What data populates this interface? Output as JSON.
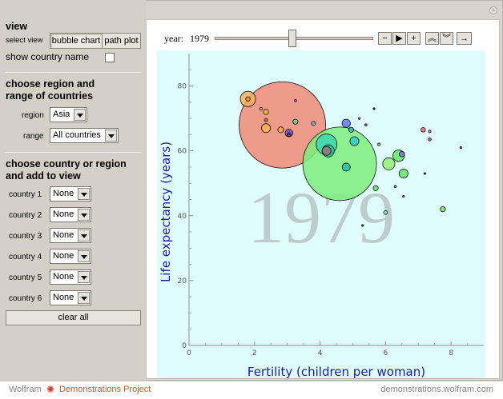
{
  "panel": {
    "view_title": "view",
    "select_view_label": "select view",
    "view_options": [
      "bubble chart",
      "path plot"
    ],
    "selected_view": "bubble chart",
    "show_country_name_label": "show country name",
    "show_country_name_checked": false,
    "region_title": "choose region and range of countries",
    "region_label": "region",
    "region_value": "Asia",
    "range_label": "range",
    "range_value": "All countries",
    "country_title": "choose country or region and add to view",
    "countries": [
      {
        "label": "country 1",
        "value": "None"
      },
      {
        "label": "country 2",
        "value": "None"
      },
      {
        "label": "country 3",
        "value": "None"
      },
      {
        "label": "country 4",
        "value": "None"
      },
      {
        "label": "country 5",
        "value": "None"
      },
      {
        "label": "country 6",
        "value": "None"
      }
    ],
    "clear_label": "clear all"
  },
  "animator": {
    "year_label": "year:",
    "year_value": "1979",
    "slider_fraction": 0.48,
    "controls": [
      {
        "name": "step-back-button",
        "glyph": "−"
      },
      {
        "name": "play-button",
        "glyph": "▶"
      },
      {
        "name": "step-forward-button",
        "glyph": "+"
      },
      {
        "name": "faster-button",
        "glyph": "︽"
      },
      {
        "name": "slower-button",
        "glyph": "︾"
      },
      {
        "name": "direction-button",
        "glyph": "→"
      }
    ]
  },
  "footer": {
    "brand_wolfram": "Wolfram",
    "brand_demos": "Demonstrations Project",
    "url": "demonstrations.wolfram.com"
  },
  "colors": {
    "plot_bg": "#e0fdfd",
    "axis_title": "#1a1aa6",
    "brand": "#d25a1c"
  },
  "chart_data": {
    "type": "scatter",
    "title": "",
    "background_year": "1979",
    "xlabel": "Fertility (children per woman)",
    "ylabel": "Life expectancy (years)",
    "xlim": [
      0,
      9
    ],
    "ylim": [
      0,
      90
    ],
    "xticks": [
      0,
      2,
      4,
      6,
      8
    ],
    "yticks": [
      0,
      20,
      40,
      60,
      80
    ],
    "grid": false,
    "points": [
      {
        "x": 2.85,
        "y": 68.0,
        "size": 2.7,
        "color": "#f08a77"
      },
      {
        "x": 4.6,
        "y": 56.0,
        "size": 2.3,
        "color": "#7cf07c"
      },
      {
        "x": 4.2,
        "y": 62.0,
        "size": 0.65,
        "color": "#3cd8b2"
      },
      {
        "x": 4.25,
        "y": 60.0,
        "size": 0.38,
        "color": "#1fc7aa"
      },
      {
        "x": 4.2,
        "y": 60.0,
        "size": 0.28,
        "color": "#9a7570"
      },
      {
        "x": 1.8,
        "y": 76.0,
        "size": 0.48,
        "color": "#f8b15a"
      },
      {
        "x": 1.8,
        "y": 76.0,
        "size": 0.14,
        "color": "#ef8a3a"
      },
      {
        "x": 2.2,
        "y": 73.0,
        "size": 0.08,
        "color": "#d8c040"
      },
      {
        "x": 2.35,
        "y": 72.0,
        "size": 0.16,
        "color": "#f3c12a"
      },
      {
        "x": 2.35,
        "y": 69.5,
        "size": 0.1,
        "color": "#a08030"
      },
      {
        "x": 2.35,
        "y": 67.0,
        "size": 0.28,
        "color": "#f8b15a"
      },
      {
        "x": 2.8,
        "y": 66.5,
        "size": 0.18,
        "color": "#f5a845"
      },
      {
        "x": 3.05,
        "y": 65.5,
        "size": 0.24,
        "color": "#7a4fd0"
      },
      {
        "x": 3.05,
        "y": 65.0,
        "size": 0.12,
        "color": "#353a7c"
      },
      {
        "x": 3.25,
        "y": 69.0,
        "size": 0.16,
        "color": "#68c87a"
      },
      {
        "x": 3.25,
        "y": 75.5,
        "size": 0.07,
        "color": "#d872d2"
      },
      {
        "x": 3.8,
        "y": 68.5,
        "size": 0.13,
        "color": "#78b0d8"
      },
      {
        "x": 4.8,
        "y": 68.5,
        "size": 0.26,
        "color": "#5b7af0"
      },
      {
        "x": 4.95,
        "y": 66.5,
        "size": 0.16,
        "color": "#38b8a6"
      },
      {
        "x": 5.05,
        "y": 63.0,
        "size": 0.28,
        "color": "#2fc8cf"
      },
      {
        "x": 4.8,
        "y": 55.0,
        "size": 0.25,
        "color": "#20c0b0"
      },
      {
        "x": 5.2,
        "y": 70.0,
        "size": 0.06,
        "color": "#c870c8"
      },
      {
        "x": 5.4,
        "y": 68.0,
        "size": 0.07,
        "color": "#d47ad0"
      },
      {
        "x": 5.65,
        "y": 73.0,
        "size": 0.03,
        "color": "#222222"
      },
      {
        "x": 5.8,
        "y": 62.0,
        "size": 0.08,
        "color": "#8fe075"
      },
      {
        "x": 5.7,
        "y": 48.5,
        "size": 0.16,
        "color": "#62e462"
      },
      {
        "x": 5.3,
        "y": 37.0,
        "size": 0.03,
        "color": "#333333"
      },
      {
        "x": 6.1,
        "y": 56.0,
        "size": 0.38,
        "color": "#8ff06e"
      },
      {
        "x": 6.4,
        "y": 58.5,
        "size": 0.36,
        "color": "#62f062"
      },
      {
        "x": 6.5,
        "y": 59.0,
        "size": 0.17,
        "color": "#7b6ae0"
      },
      {
        "x": 6.55,
        "y": 53.0,
        "size": 0.28,
        "color": "#64e864"
      },
      {
        "x": 6.3,
        "y": 49.0,
        "size": 0.07,
        "color": "#48b8e8"
      },
      {
        "x": 6.55,
        "y": 46.0,
        "size": 0.03,
        "color": "#333333"
      },
      {
        "x": 6.0,
        "y": 41.0,
        "size": 0.12,
        "color": "#78f0ae"
      },
      {
        "x": 7.15,
        "y": 66.5,
        "size": 0.14,
        "color": "#f06880"
      },
      {
        "x": 7.35,
        "y": 66.0,
        "size": 0.08,
        "color": "#e8609a"
      },
      {
        "x": 7.35,
        "y": 63.5,
        "size": 0.09,
        "color": "#d84090"
      },
      {
        "x": 7.2,
        "y": 53.0,
        "size": 0.03,
        "color": "#333333"
      },
      {
        "x": 7.75,
        "y": 42.0,
        "size": 0.16,
        "color": "#80e060"
      },
      {
        "x": 8.3,
        "y": 61.0,
        "size": 0.05,
        "color": "#d24070"
      }
    ]
  }
}
